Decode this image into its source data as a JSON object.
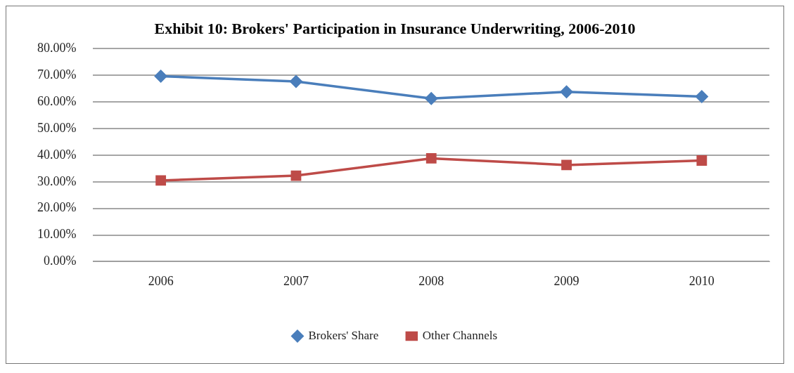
{
  "chart_data": {
    "type": "line",
    "title": "Exhibit 10: Brokers' Participation in Insurance Underwriting, 2006-2010",
    "categories": [
      "2006",
      "2007",
      "2008",
      "2009",
      "2010"
    ],
    "series": [
      {
        "name": "Brokers' Share",
        "color": "#4a7ebb",
        "marker": "diamond",
        "values": [
          69.7,
          67.7,
          61.3,
          63.8,
          62.0
        ]
      },
      {
        "name": "Other Channels",
        "color": "#be4b48",
        "marker": "square",
        "values": [
          30.5,
          32.3,
          38.8,
          36.3,
          38.0
        ]
      }
    ],
    "ylim": [
      0,
      80
    ],
    "yticks": [
      {
        "value": 0,
        "label": "0.00%"
      },
      {
        "value": 10,
        "label": "10.00%"
      },
      {
        "value": 20,
        "label": "20.00%"
      },
      {
        "value": 30,
        "label": "30.00%"
      },
      {
        "value": 40,
        "label": "40.00%"
      },
      {
        "value": 50,
        "label": "50.00%"
      },
      {
        "value": 60,
        "label": "60.00%"
      },
      {
        "value": 70,
        "label": "70.00%"
      },
      {
        "value": 80,
        "label": "80.00%"
      }
    ],
    "grid": "y",
    "legend": "bottom",
    "line_style": "solid"
  }
}
